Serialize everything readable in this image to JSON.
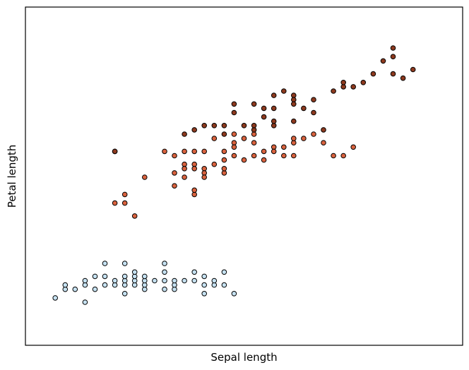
{
  "chart_data": {
    "type": "scatter",
    "title": "",
    "xlabel": "Sepal length",
    "ylabel": "Petal length",
    "xlim": [
      4.0,
      8.4
    ],
    "ylim": [
      0.0,
      7.85
    ],
    "grid": false,
    "ticks": false,
    "series": [
      {
        "color": "#c6e2f2",
        "points": [
          [
            4.3,
            1.1
          ],
          [
            4.4,
            1.3
          ],
          [
            4.4,
            1.4
          ],
          [
            4.5,
            1.3
          ],
          [
            4.6,
            1.4
          ],
          [
            4.6,
            1.0
          ],
          [
            4.6,
            1.5
          ],
          [
            4.7,
            1.3
          ],
          [
            4.7,
            1.6
          ],
          [
            4.8,
            1.4
          ],
          [
            4.8,
            1.6
          ],
          [
            4.8,
            1.9
          ],
          [
            4.9,
            1.4
          ],
          [
            4.9,
            1.5
          ],
          [
            5.0,
            1.2
          ],
          [
            5.0,
            1.4
          ],
          [
            5.0,
            1.5
          ],
          [
            5.0,
            1.6
          ],
          [
            5.0,
            1.9
          ],
          [
            5.1,
            1.4
          ],
          [
            5.1,
            1.5
          ],
          [
            5.1,
            1.6
          ],
          [
            5.1,
            1.7
          ],
          [
            5.2,
            1.3
          ],
          [
            5.2,
            1.4
          ],
          [
            5.2,
            1.5
          ],
          [
            5.2,
            1.6
          ],
          [
            5.3,
            1.5
          ],
          [
            5.4,
            1.3
          ],
          [
            5.4,
            1.5
          ],
          [
            5.4,
            1.7
          ],
          [
            5.4,
            1.9
          ],
          [
            5.5,
            1.3
          ],
          [
            5.5,
            1.4
          ],
          [
            5.5,
            1.5
          ],
          [
            5.6,
            1.5
          ],
          [
            5.7,
            1.5
          ],
          [
            5.7,
            1.7
          ],
          [
            5.8,
            1.2
          ],
          [
            5.8,
            1.4
          ],
          [
            5.8,
            1.6
          ],
          [
            5.9,
            1.4
          ],
          [
            5.9,
            1.5
          ],
          [
            6.0,
            1.4
          ],
          [
            6.0,
            1.7
          ],
          [
            6.1,
            1.2
          ]
        ]
      },
      {
        "color": "#d9623e",
        "points": [
          [
            4.9,
            4.5
          ],
          [
            4.9,
            3.3
          ],
          [
            5.0,
            3.3
          ],
          [
            5.0,
            3.5
          ],
          [
            5.1,
            3.0
          ],
          [
            5.2,
            3.9
          ],
          [
            5.4,
            4.5
          ],
          [
            5.5,
            4.4
          ],
          [
            5.5,
            3.7
          ],
          [
            5.5,
            4.0
          ],
          [
            5.6,
            4.5
          ],
          [
            5.6,
            3.9
          ],
          [
            5.6,
            4.2
          ],
          [
            5.6,
            4.1
          ],
          [
            5.7,
            3.5
          ],
          [
            5.7,
            4.2
          ],
          [
            5.7,
            4.5
          ],
          [
            5.7,
            4.1
          ],
          [
            5.7,
            3.6
          ],
          [
            5.8,
            4.1
          ],
          [
            5.8,
            4.0
          ],
          [
            5.8,
            3.9
          ],
          [
            5.8,
            4.5
          ],
          [
            5.9,
            4.8
          ],
          [
            5.9,
            4.2
          ],
          [
            6.0,
            4.0
          ],
          [
            6.0,
            4.5
          ],
          [
            6.0,
            4.3
          ],
          [
            6.0,
            4.1
          ],
          [
            6.1,
            4.7
          ],
          [
            6.1,
            4.4
          ],
          [
            6.1,
            4.6
          ],
          [
            6.1,
            4.9
          ],
          [
            6.2,
            4.3
          ],
          [
            6.2,
            4.8
          ],
          [
            6.3,
            4.4
          ],
          [
            6.3,
            4.7
          ],
          [
            6.3,
            4.9
          ],
          [
            6.4,
            4.5
          ],
          [
            6.4,
            4.3
          ],
          [
            6.5,
            4.6
          ],
          [
            6.5,
            4.5
          ],
          [
            6.6,
            4.4
          ],
          [
            6.6,
            4.6
          ],
          [
            6.7,
            4.7
          ],
          [
            6.7,
            4.4
          ],
          [
            6.7,
            4.8
          ],
          [
            6.8,
            4.8
          ],
          [
            6.9,
            4.9
          ],
          [
            7.0,
            4.7
          ],
          [
            7.1,
            4.4
          ],
          [
            7.2,
            4.4
          ],
          [
            7.3,
            4.6
          ]
        ]
      },
      {
        "color": "#8e3a1f",
        "points": [
          [
            4.9,
            4.5
          ],
          [
            5.6,
            4.9
          ],
          [
            5.7,
            5.0
          ],
          [
            5.8,
            5.1
          ],
          [
            5.9,
            5.1
          ],
          [
            6.0,
            5.1
          ],
          [
            6.0,
            4.9
          ],
          [
            6.1,
            5.6
          ],
          [
            6.1,
            5.4
          ],
          [
            6.2,
            5.1
          ],
          [
            6.3,
            5.6
          ],
          [
            6.3,
            5.0
          ],
          [
            6.3,
            5.1
          ],
          [
            6.4,
            5.3
          ],
          [
            6.4,
            5.5
          ],
          [
            6.5,
            5.8
          ],
          [
            6.5,
            5.1
          ],
          [
            6.5,
            5.5
          ],
          [
            6.5,
            5.2
          ],
          [
            6.6,
            5.9
          ],
          [
            6.7,
            5.8
          ],
          [
            6.7,
            5.7
          ],
          [
            6.7,
            5.6
          ],
          [
            6.7,
            5.2
          ],
          [
            6.8,
            5.5
          ],
          [
            6.9,
            5.7
          ],
          [
            6.9,
            5.4
          ],
          [
            7.0,
            5.0
          ],
          [
            7.1,
            5.9
          ],
          [
            7.2,
            6.0
          ],
          [
            7.2,
            6.1
          ],
          [
            7.3,
            6.0
          ],
          [
            7.4,
            6.1
          ],
          [
            7.5,
            6.3
          ],
          [
            7.6,
            6.6
          ],
          [
            7.7,
            6.7
          ],
          [
            7.7,
            6.9
          ],
          [
            7.8,
            6.2
          ],
          [
            7.9,
            6.4
          ],
          [
            7.7,
            6.3
          ]
        ]
      }
    ]
  }
}
